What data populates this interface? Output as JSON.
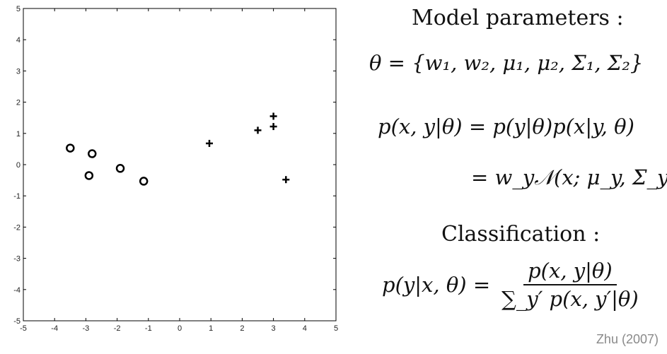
{
  "chart_data": {
    "type": "scatter",
    "xlim": [
      -5,
      5
    ],
    "ylim": [
      -5,
      5
    ],
    "x_ticks": [
      -5,
      -4,
      -3,
      -2,
      -1,
      0,
      1,
      2,
      3,
      4,
      5
    ],
    "y_ticks": [
      -5,
      -4,
      -3,
      -2,
      -1,
      0,
      1,
      2,
      3,
      4,
      5
    ],
    "grid": false,
    "series": [
      {
        "marker": "circle",
        "points": [
          [
            -3.5,
            0.53
          ],
          [
            -2.8,
            0.35
          ],
          [
            -2.9,
            -0.35
          ],
          [
            -1.9,
            -0.12
          ],
          [
            -1.15,
            -0.53
          ]
        ]
      },
      {
        "marker": "plus",
        "points": [
          [
            0.95,
            0.68
          ],
          [
            2.5,
            1.1
          ],
          [
            3.0,
            1.55
          ],
          [
            3.0,
            1.22
          ],
          [
            3.4,
            -0.48
          ]
        ]
      }
    ]
  },
  "equations": {
    "heading_params": "Model parameters :",
    "theta_lhs": "θ = ",
    "theta_set": "{w₁, w₂, μ₁, μ₂, Σ₁, Σ₂}",
    "joint_line1": "p(x, y|θ) = p(y|θ)p(x|y, θ)",
    "joint_line2": "= w_y𝒩(x; μ_y, Σ_y)",
    "heading_classification": "Classification :",
    "posterior_lhs": "p(y|x, θ) = ",
    "posterior_numerator": "p(x, y|θ)",
    "posterior_denominator": "∑_y′ p(x, y′|θ)"
  },
  "citation": "Zhu (2007)"
}
